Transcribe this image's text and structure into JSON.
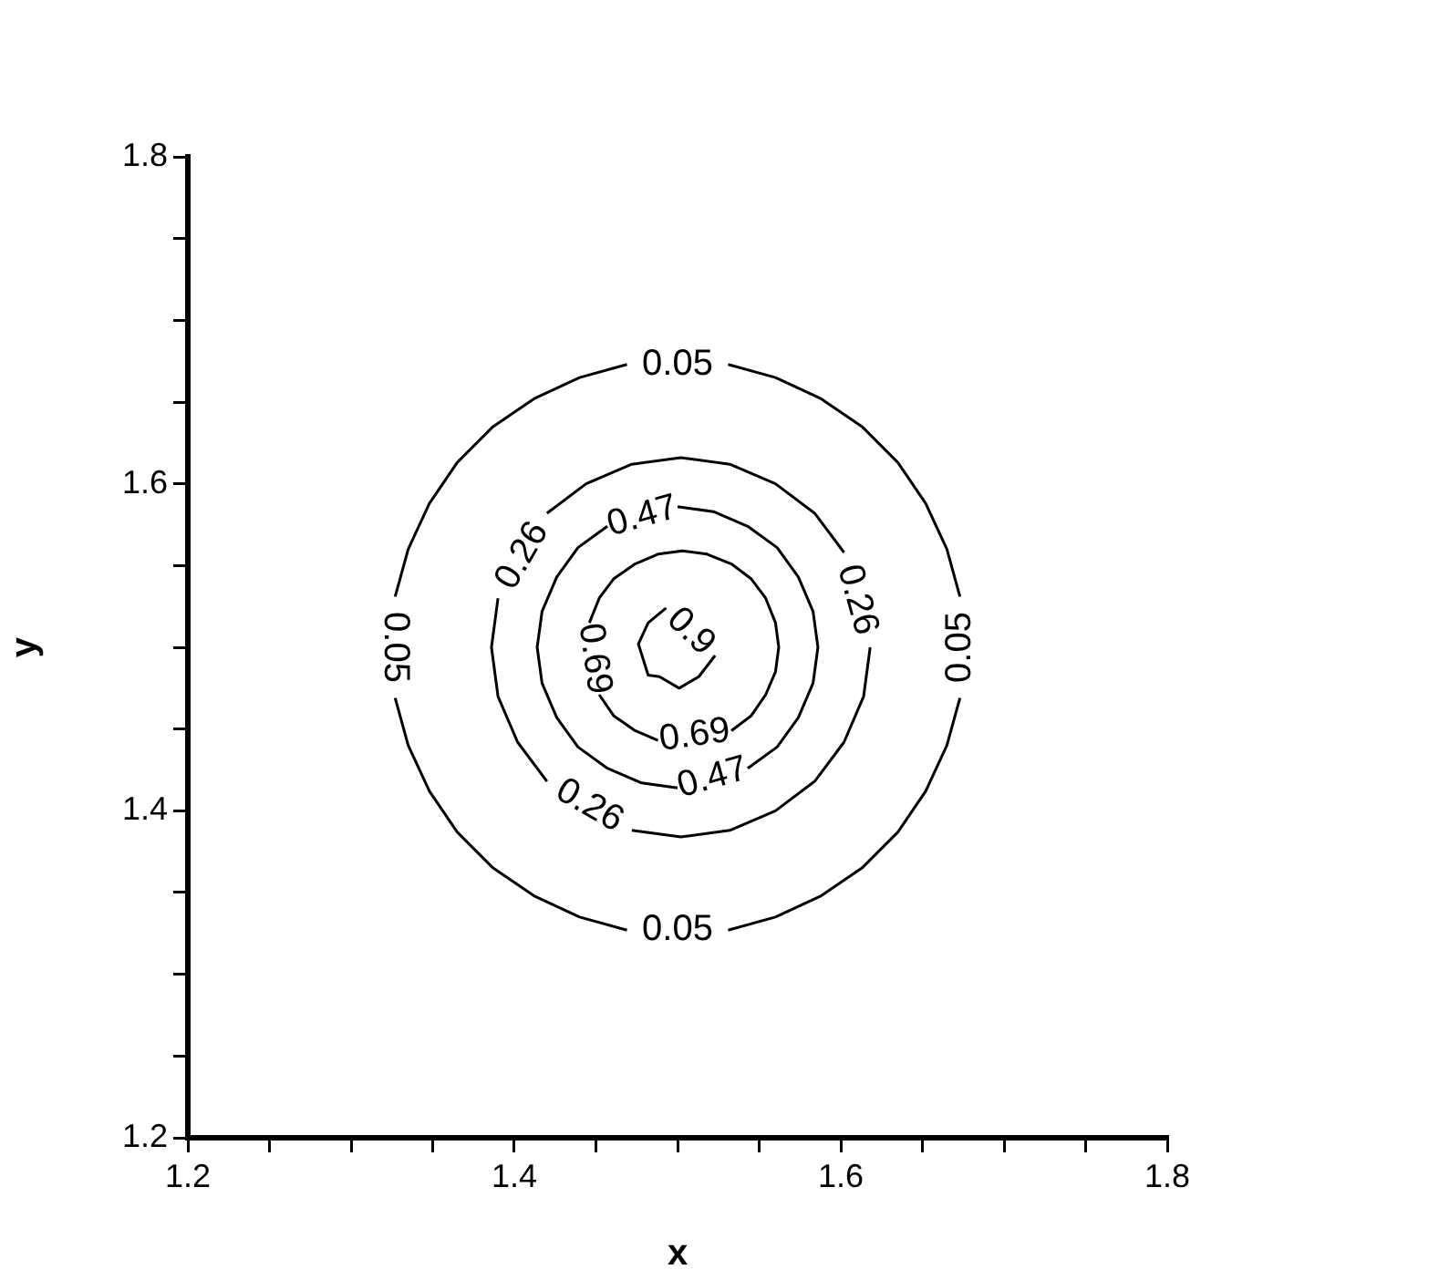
{
  "chart_data": {
    "type": "line",
    "xlabel": "x",
    "ylabel": "y",
    "xlim": [
      1.2,
      1.8
    ],
    "ylim": [
      1.2,
      1.8
    ],
    "xticks": [
      1.2,
      {
        "value": 1.25,
        "label": null
      },
      {
        "value": 1.3,
        "label": null
      },
      {
        "value": 1.35,
        "label": null
      },
      1.4,
      {
        "value": 1.45,
        "label": null
      },
      {
        "value": 1.5,
        "label": null
      },
      {
        "value": 1.55,
        "label": null
      },
      1.6,
      {
        "value": 1.65,
        "label": null
      },
      {
        "value": 1.7,
        "label": null
      },
      {
        "value": 1.75,
        "label": null
      },
      1.8
    ],
    "yticks": [
      1.2,
      {
        "value": 1.25,
        "label": null
      },
      {
        "value": 1.3,
        "label": null
      },
      {
        "value": 1.35,
        "label": null
      },
      1.4,
      {
        "value": 1.45,
        "label": null
      },
      {
        "value": 1.5,
        "label": null
      },
      {
        "value": 1.55,
        "label": null
      },
      1.6,
      {
        "value": 1.65,
        "label": null
      },
      {
        "value": 1.7,
        "label": null
      },
      {
        "value": 1.75,
        "label": null
      },
      1.8
    ],
    "grid": false,
    "legend": false,
    "marker": "none",
    "line_style": "solid",
    "series": [
      {
        "name": "0.05",
        "color": "#000000",
        "x": [
          1.673,
          1.665,
          1.652,
          1.635,
          1.613,
          1.588,
          1.56,
          1.531,
          null,
          1.469,
          1.44,
          1.412,
          1.387,
          1.365,
          1.348,
          1.335,
          1.327,
          null,
          1.327,
          1.335,
          1.348,
          1.365,
          1.387,
          1.412,
          1.44,
          1.469,
          null,
          1.531,
          1.56,
          1.588,
          1.613,
          1.635,
          1.652,
          1.665,
          1.673,
          null
        ],
        "values": [
          1.531,
          1.56,
          1.588,
          1.613,
          1.635,
          1.652,
          1.665,
          1.673,
          null,
          1.673,
          1.665,
          1.652,
          1.635,
          1.613,
          1.588,
          1.56,
          1.531,
          null,
          1.469,
          1.44,
          1.412,
          1.387,
          1.365,
          1.348,
          1.335,
          1.327,
          null,
          1.327,
          1.335,
          1.348,
          1.365,
          1.387,
          1.412,
          1.44,
          1.469,
          null
        ]
      },
      {
        "name": "0.26",
        "color": "#000000",
        "x": [
          1.602,
          1.584,
          1.56,
          1.532,
          1.502,
          1.472,
          1.444,
          1.42,
          null,
          1.39,
          1.386,
          1.39,
          1.402,
          1.42,
          null,
          1.472,
          1.502,
          1.532,
          1.56,
          1.584,
          1.602,
          1.614,
          1.618,
          null
        ],
        "values": [
          1.558,
          1.582,
          1.6,
          1.612,
          1.616,
          1.612,
          1.6,
          1.582,
          null,
          1.53,
          1.5,
          1.47,
          1.442,
          1.418,
          null,
          1.388,
          1.384,
          1.388,
          1.4,
          1.418,
          1.442,
          1.47,
          1.5,
          null
        ]
      },
      {
        "name": "0.47",
        "color": "#000000",
        "x": [
          1.457,
          1.439,
          1.426,
          1.417,
          1.414,
          1.417,
          1.426,
          1.439,
          1.457,
          1.478,
          1.5,
          null,
          1.543,
          1.561,
          1.574,
          1.583,
          1.586,
          1.583,
          1.574,
          1.561,
          1.543,
          1.522,
          1.5,
          null
        ],
        "values": [
          1.574,
          1.561,
          1.543,
          1.522,
          1.5,
          1.478,
          1.457,
          1.439,
          1.426,
          1.417,
          1.414,
          null,
          1.426,
          1.439,
          1.457,
          1.478,
          1.5,
          1.522,
          1.543,
          1.561,
          1.574,
          1.583,
          1.586,
          null
        ]
      },
      {
        "name": "0.69",
        "color": "#000000",
        "x": [
          1.533,
          1.545,
          1.554,
          1.56,
          1.562,
          1.56,
          1.554,
          1.545,
          1.533,
          1.518,
          1.503,
          1.488,
          1.474,
          1.461,
          1.452,
          1.446,
          null,
          1.452,
          1.461,
          1.474,
          1.488,
          null
        ],
        "values": [
          1.449,
          1.458,
          1.471,
          1.485,
          1.5,
          1.515,
          1.53,
          1.542,
          1.551,
          1.557,
          1.559,
          1.557,
          1.551,
          1.542,
          1.53,
          1.515,
          null,
          1.471,
          1.458,
          1.449,
          1.443,
          null
        ]
      },
      {
        "name": "0.9",
        "color": "#000000",
        "x": [
          1.493,
          1.482,
          1.476,
          1.482,
          1.489,
          1.501,
          1.513,
          1.523,
          null
        ],
        "values": [
          1.524,
          1.515,
          1.502,
          1.483,
          1.482,
          1.475,
          1.482,
          1.495,
          null
        ]
      }
    ]
  }
}
